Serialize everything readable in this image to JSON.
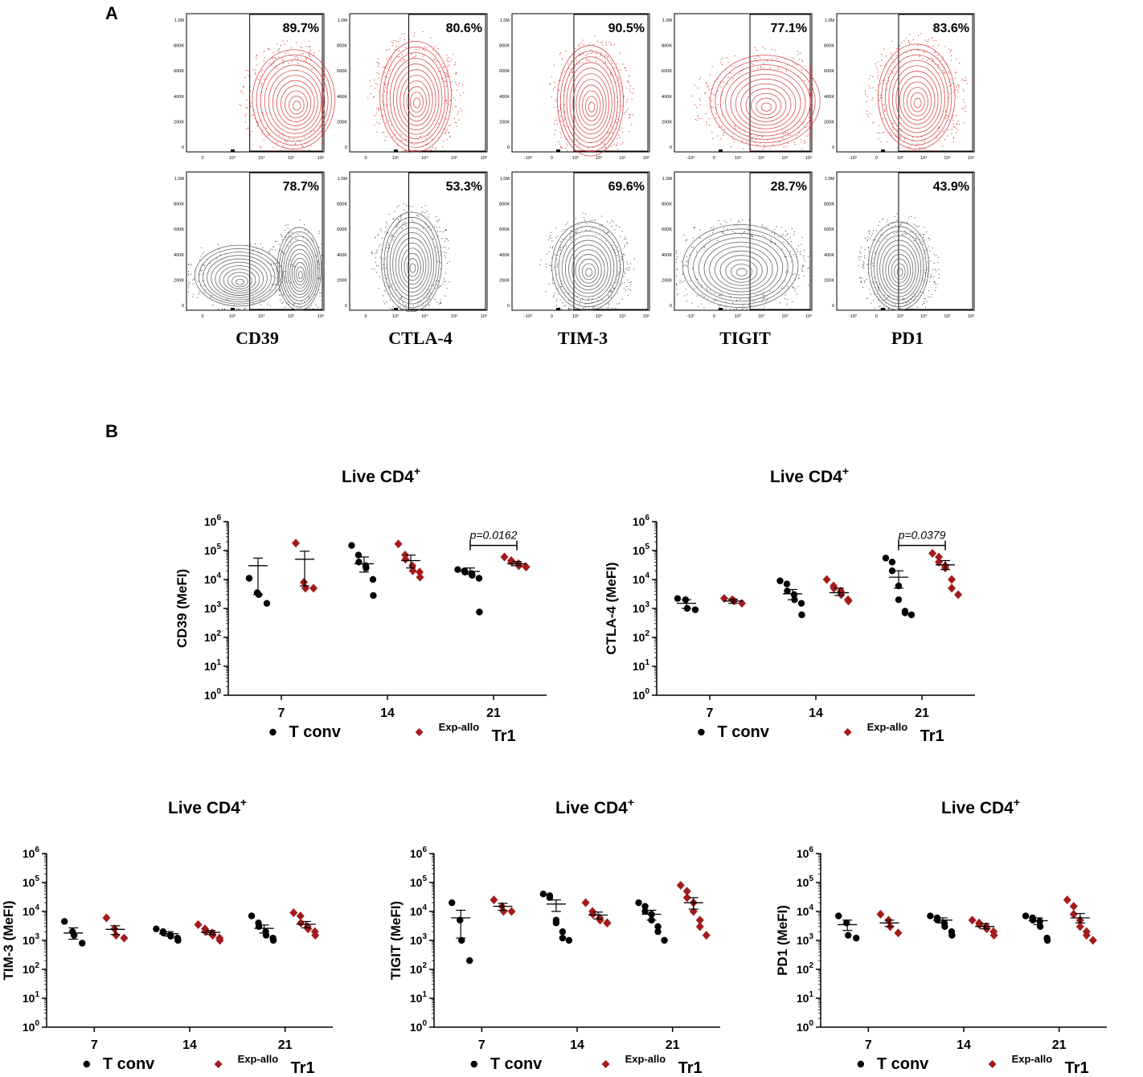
{
  "panel_a_label": "A",
  "panel_b_label": "B",
  "flow_plots": {
    "markers": [
      "CD39",
      "CTLA-4",
      "TIM-3",
      "TIGIT",
      "PD1"
    ],
    "exp_allo_tr1_percent": [
      "89.7%",
      "80.6%",
      "90.5%",
      "77.1%",
      "83.6%"
    ],
    "t_conv_percent": [
      "78.7%",
      "53.3%",
      "69.6%",
      "28.7%",
      "43.9%"
    ],
    "y_ticks": [
      "1.0M",
      "800K",
      "600K",
      "400K",
      "200K",
      "0"
    ],
    "x_ticks_a": [
      "0",
      "10³",
      "10⁴",
      "10⁵",
      "10⁶"
    ],
    "x_ticks_b": [
      "-10³",
      "0",
      "10³",
      "10⁴",
      "10⁵",
      "10⁶"
    ],
    "colors": {
      "tr1": "#d63a3a",
      "tconv": "#555555"
    }
  },
  "chart_data": [
    {
      "type": "scatter",
      "title": "Live CD4",
      "title_sup": "+",
      "ylabel": "CD39 (MeFI)",
      "xlabel": "",
      "y_scale": "log10",
      "ylim": [
        1,
        1000000
      ],
      "categories": [
        "7",
        "14",
        "21"
      ],
      "significance": {
        "category": "21",
        "label": "p=0.0162"
      },
      "series": [
        {
          "name": "T conv",
          "color": "#000000",
          "marker": "circle",
          "points": [
            [
              11000,
              3500,
              3000,
              1500
            ],
            [
              150000,
              70000,
              40000,
              30000,
              25000,
              10000,
              2800
            ],
            [
              22000,
              20000,
              18000,
              16000,
              14000,
              11000,
              750
            ]
          ],
          "mean": [
            30000,
            35000,
            19000
          ],
          "sem_low": [
            3000,
            18000,
            15000
          ],
          "sem_high": [
            55000,
            60000,
            25000
          ]
        },
        {
          "name": "Exp-allo Tr1",
          "name_sup": "Exp-allo",
          "name_main": "Tr1",
          "color": "#a31b1b",
          "marker": "diamond",
          "points": [
            [
              180000,
              8000,
              5000,
              5000
            ],
            [
              170000,
              70000,
              50000,
              30000,
              20000,
              18000,
              12000
            ],
            [
              60000,
              45000,
              40000,
              35000,
              30000,
              28000,
              27000
            ]
          ],
          "mean": [
            50000,
            45000,
            35000
          ],
          "sem_low": [
            6000,
            25000,
            30000
          ],
          "sem_high": [
            95000,
            70000,
            42000
          ]
        }
      ]
    },
    {
      "type": "scatter",
      "title": "Live CD4",
      "title_sup": "+",
      "ylabel": "CTLA-4 (MeFI)",
      "xlabel": "",
      "y_scale": "log10",
      "ylim": [
        1,
        1000000
      ],
      "categories": [
        "7",
        "14",
        "21"
      ],
      "significance": {
        "category": "21",
        "label": "p=0.0379"
      },
      "series": [
        {
          "name": "T conv",
          "color": "#000000",
          "marker": "circle",
          "points": [
            [
              2200,
              2000,
              1000,
              900
            ],
            [
              9000,
              7000,
              4000,
              3000,
              2000,
              1500,
              600
            ],
            [
              55000,
              40000,
              20000,
              6000,
              2000,
              800,
              700,
              600
            ]
          ],
          "mean": [
            1500,
            3200,
            12000
          ],
          "sem_low": [
            1000,
            2000,
            5000
          ],
          "sem_high": [
            2000,
            4500,
            20000
          ]
        },
        {
          "name": "Exp-allo Tr1",
          "name_sup": "Exp-allo",
          "name_main": "Tr1",
          "color": "#a31b1b",
          "marker": "diamond",
          "points": [
            [
              2200,
              2000,
              1800,
              1500
            ],
            [
              10000,
              6000,
              5000,
              4000,
              3000,
              2000,
              1800
            ],
            [
              80000,
              60000,
              40000,
              30000,
              25000,
              10000,
              5000,
              3000
            ]
          ],
          "mean": [
            1800,
            3500,
            32000
          ],
          "sem_low": [
            1500,
            2800,
            22000
          ],
          "sem_high": [
            2100,
            5000,
            45000
          ]
        }
      ]
    },
    {
      "type": "scatter",
      "title": "Live CD4",
      "title_sup": "+",
      "ylabel": "TIM-3 (MeFI)",
      "xlabel": "",
      "y_scale": "log10",
      "ylim": [
        1,
        1000000
      ],
      "categories": [
        "7",
        "14",
        "21"
      ],
      "significance": null,
      "series": [
        {
          "name": "T conv",
          "color": "#000000",
          "marker": "circle",
          "points": [
            [
              4500,
              2000,
              1500,
              800
            ],
            [
              2500,
              2000,
              1800,
              1500,
              1400,
              1200,
              1000
            ],
            [
              7000,
              4000,
              3000,
              2000,
              1500,
              1200,
              1000
            ]
          ],
          "mean": [
            1800,
            1700,
            2600
          ],
          "sem_low": [
            1100,
            1400,
            1800
          ],
          "sem_high": [
            2700,
            2000,
            3400
          ]
        },
        {
          "name": "Exp-allo Tr1",
          "name_sup": "Exp-allo",
          "name_main": "Tr1",
          "color": "#a31b1b",
          "marker": "diamond",
          "points": [
            [
              6000,
              2500,
              1500,
              1200
            ],
            [
              3500,
              2500,
              2000,
              1800,
              1500,
              1200,
              1000
            ],
            [
              9000,
              7000,
              4000,
              3000,
              2500,
              2000,
              1500
            ]
          ],
          "mean": [
            2400,
            1900,
            3600
          ],
          "sem_low": [
            1600,
            1600,
            2700
          ],
          "sem_high": [
            3200,
            2200,
            4500
          ]
        }
      ]
    },
    {
      "type": "scatter",
      "title": "Live CD4",
      "title_sup": "+",
      "ylabel": "TIGIT (MeFI)",
      "xlabel": "",
      "y_scale": "log10",
      "ylim": [
        1,
        1000000
      ],
      "categories": [
        "7",
        "14",
        "21"
      ],
      "significance": null,
      "series": [
        {
          "name": "T conv",
          "color": "#000000",
          "marker": "circle",
          "points": [
            [
              20000,
              5000,
              1000,
              200
            ],
            [
              40000,
              35000,
              30000,
              5000,
              4000,
              2000,
              1200,
              1000
            ],
            [
              20000,
              15000,
              10000,
              8000,
              5000,
              3000,
              2000,
              1000
            ]
          ],
          "mean": [
            6000,
            18000,
            8000
          ],
          "sem_low": [
            1200,
            10000,
            5000
          ],
          "sem_high": [
            11000,
            25000,
            11000
          ]
        },
        {
          "name": "Exp-allo Tr1",
          "name_sup": "Exp-allo",
          "name_main": "Tr1",
          "color": "#a31b1b",
          "marker": "diamond",
          "points": [
            [
              25000,
              15000,
              10000,
              10000
            ],
            [
              20000,
              10000,
              8000,
              6000,
              5000,
              4000,
              4000
            ],
            [
              80000,
              50000,
              30000,
              20000,
              10000,
              5000,
              3000,
              1500
            ]
          ],
          "mean": [
            15000,
            7500,
            20000
          ],
          "sem_low": [
            11000,
            5500,
            12000
          ],
          "sem_high": [
            19000,
            9500,
            30000
          ]
        }
      ]
    },
    {
      "type": "scatter",
      "title": "Live CD4",
      "title_sup": "+",
      "ylabel": "PD1 (MeFI)",
      "xlabel": "",
      "y_scale": "log10",
      "ylim": [
        1,
        1000000
      ],
      "categories": [
        "7",
        "14",
        "21"
      ],
      "significance": null,
      "series": [
        {
          "name": "T conv",
          "color": "#000000",
          "marker": "circle",
          "points": [
            [
              7000,
              4000,
              1500,
              1200
            ],
            [
              7000,
              6000,
              5000,
              4000,
              3000,
              2000,
              1500
            ],
            [
              7000,
              6000,
              5000,
              4500,
              3000,
              1200,
              1000
            ]
          ],
          "mean": [
            3500,
            5000,
            4800
          ],
          "sem_low": [
            2200,
            4000,
            3500
          ],
          "sem_high": [
            5000,
            6000,
            6000
          ]
        },
        {
          "name": "Exp-allo Tr1",
          "name_sup": "Exp-allo",
          "name_main": "Tr1",
          "color": "#a31b1b",
          "marker": "diamond",
          "points": [
            [
              8000,
              5000,
              3000,
              1800
            ],
            [
              5000,
              4000,
              3500,
              3000,
              2500,
              2000,
              1500
            ],
            [
              25000,
              15000,
              8000,
              5000,
              3000,
              2000,
              1500,
              1000
            ]
          ],
          "mean": [
            4000,
            3000,
            6000
          ],
          "sem_low": [
            3000,
            2500,
            4000
          ],
          "sem_high": [
            5000,
            3800,
            8500
          ]
        }
      ]
    }
  ]
}
